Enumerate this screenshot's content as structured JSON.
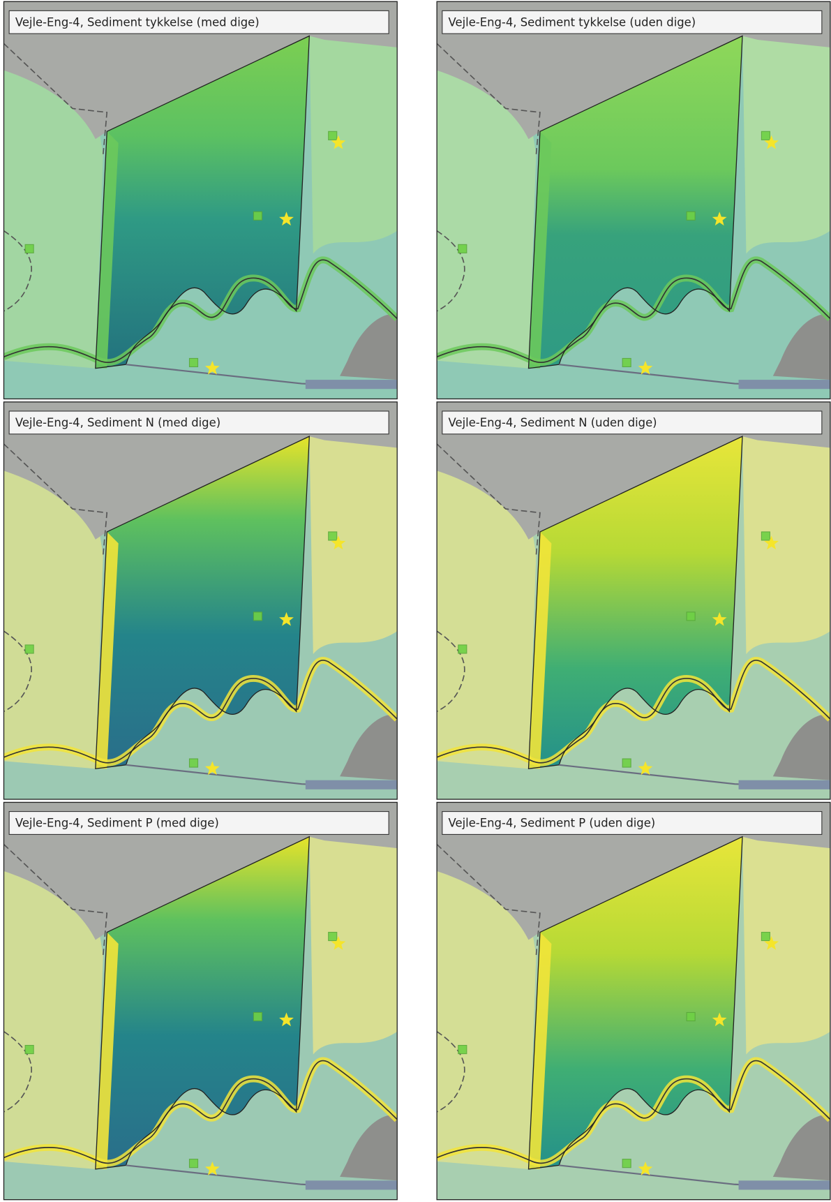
{
  "panels": [
    {
      "title": "Vejle-Eng-4, Sediment tykkelse (med dige)"
    },
    {
      "title": "Vejle-Eng-4, Sediment tykkelse (uden dige)"
    },
    {
      "title": "Vejle-Eng-4, Sediment N (med dige)"
    },
    {
      "title": "Vejle-Eng-4, Sediment N (uden dige)"
    },
    {
      "title": "Vejle-Eng-4, Sediment P (med dige)"
    },
    {
      "title": "Vejle-Eng-4, Sediment P (uden dige)"
    }
  ]
}
